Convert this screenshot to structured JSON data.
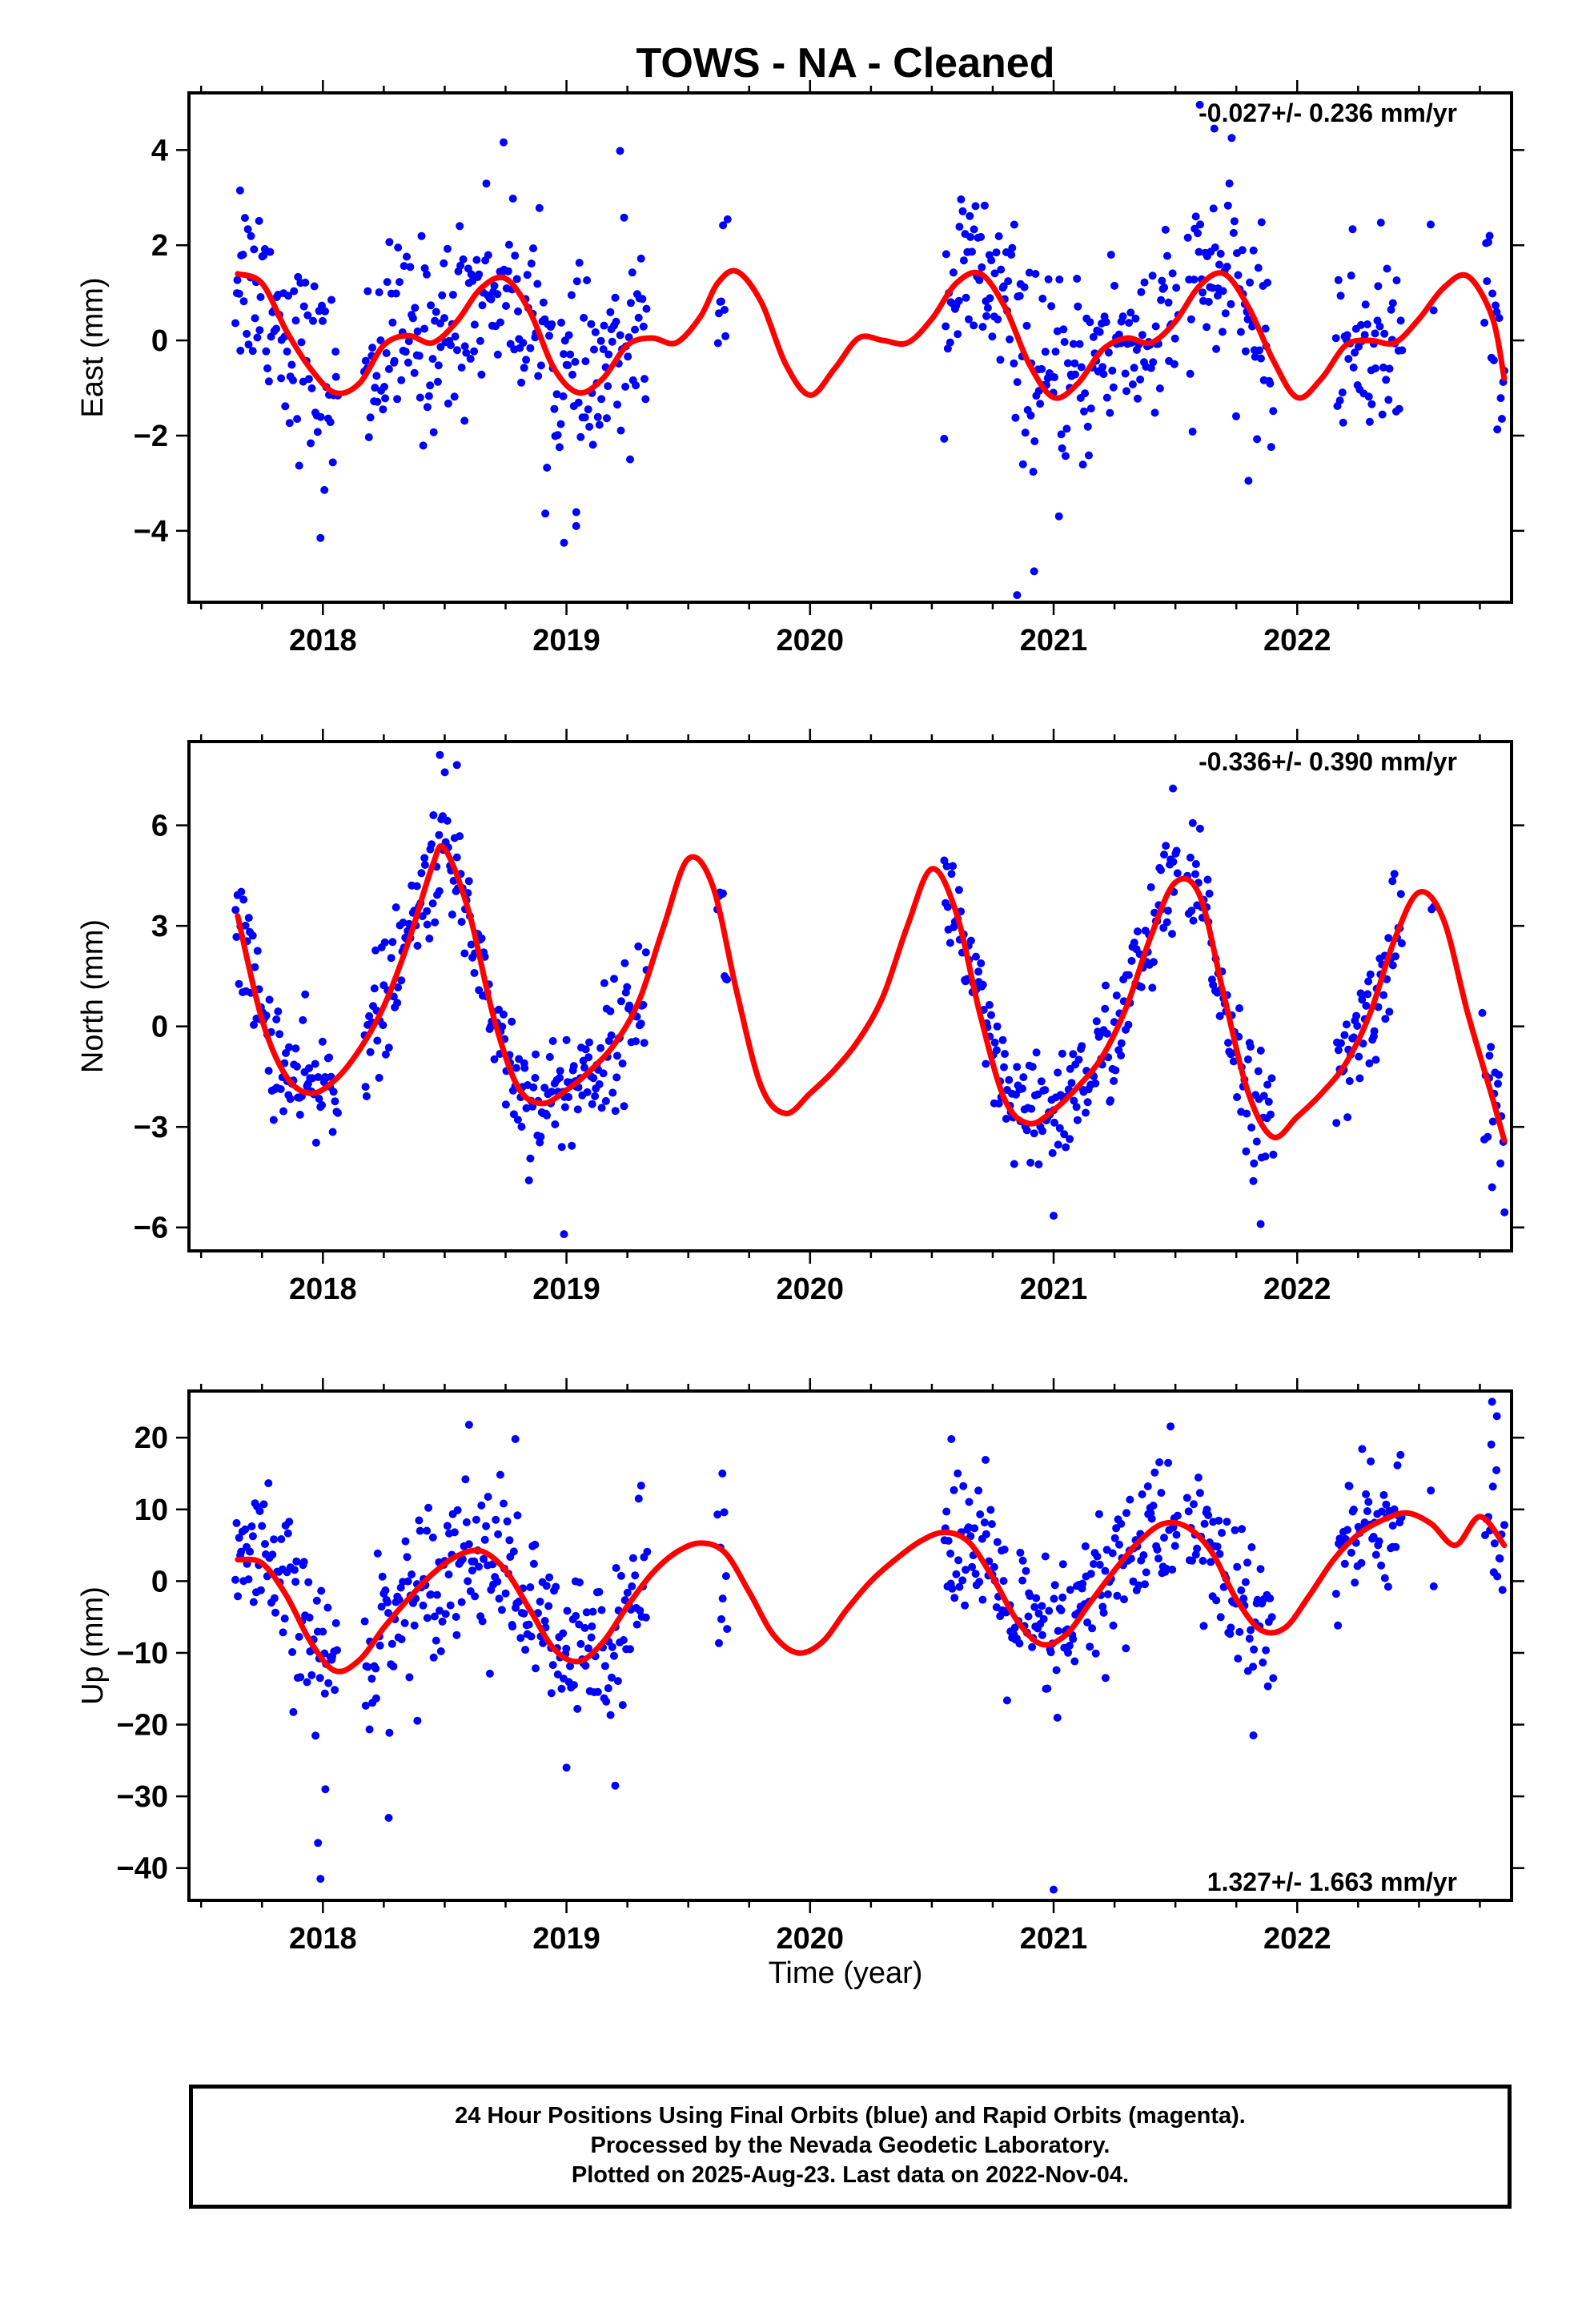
{
  "title": "TOWS  - NA - Cleaned",
  "xlabel": "Time (year)",
  "footer": {
    "line1": "24 Hour Positions Using Final Orbits (blue) and Rapid Orbits (magenta).",
    "line2": "Processed by the Nevada Geodetic Laboratory.",
    "line3": "Plotted on 2025-Aug-23. Last data on 2022-Nov-04."
  },
  "colors": {
    "points": "#0000ff",
    "fit": "#ff0000",
    "frame": "#000000"
  },
  "chart_data": [
    {
      "type": "scatter",
      "ylabel": "East (mm)",
      "rate_label": "-0.027+/- 0.236 mm/yr",
      "rate_position": "top-right",
      "xlim": [
        2017.45,
        2022.88
      ],
      "ylim": [
        -5.5,
        5.2
      ],
      "xticks": [
        2018,
        2019,
        2020,
        2021,
        2022
      ],
      "yticks": [
        -4,
        -2,
        0,
        2,
        4
      ],
      "ytick_labels": [
        "−4",
        "−2",
        "0",
        "2",
        "4"
      ],
      "data_segments": [
        [
          2017.64,
          2018.06
        ],
        [
          2018.17,
          2019.33
        ],
        [
          2019.62,
          2019.66
        ],
        [
          2020.55,
          2021.51
        ],
        [
          2021.55,
          2021.9
        ],
        [
          2022.16,
          2022.43
        ],
        [
          2022.55,
          2022.56
        ],
        [
          2022.77,
          2022.85
        ]
      ],
      "scatter_params": {
        "sd": 1.0,
        "annual": [
          0.25,
          0.2
        ],
        "semi": [
          -0.7,
          0.3
        ]
      },
      "outliers": [
        [
          2017.66,
          3.15
        ],
        [
          2017.99,
          -4.15
        ],
        [
          2018.99,
          -4.25
        ],
        [
          2019.04,
          -3.9
        ],
        [
          2019.22,
          3.98
        ],
        [
          2020.85,
          -5.35
        ],
        [
          2020.92,
          -4.85
        ],
        [
          2021.6,
          4.95
        ],
        [
          2021.66,
          4.45
        ],
        [
          2021.8,
          -2.95
        ]
      ],
      "fit": {
        "x": [
          2017.65,
          2017.75,
          2017.85,
          2017.95,
          2018.05,
          2018.15,
          2018.25,
          2018.35,
          2018.45,
          2018.55,
          2018.65,
          2018.75,
          2018.85,
          2018.95,
          2019.05,
          2019.15,
          2019.25,
          2019.35,
          2019.45,
          2019.55,
          2019.62,
          2019.7,
          2019.8,
          2019.9,
          2020.0,
          2020.1,
          2020.2,
          2020.3,
          2020.4,
          2020.5,
          2020.6,
          2020.7,
          2020.8,
          2020.9,
          2021.0,
          2021.1,
          2021.2,
          2021.3,
          2021.4,
          2021.5,
          2021.6,
          2021.7,
          2021.8,
          2021.9,
          2022.0,
          2022.1,
          2022.2,
          2022.3,
          2022.4,
          2022.5,
          2022.6,
          2022.7,
          2022.8,
          2022.85
        ],
        "y": [
          1.4,
          1.2,
          0.2,
          -0.6,
          -1.1,
          -0.9,
          -0.1,
          0.1,
          -0.05,
          0.4,
          1.1,
          1.3,
          0.6,
          -0.6,
          -1.1,
          -0.8,
          -0.1,
          0.05,
          -0.05,
          0.5,
          1.2,
          1.45,
          0.8,
          -0.5,
          -1.15,
          -0.6,
          0.05,
          0.0,
          -0.05,
          0.45,
          1.2,
          1.4,
          0.7,
          -0.5,
          -1.2,
          -0.9,
          -0.2,
          0.05,
          -0.05,
          0.4,
          1.15,
          1.4,
          0.7,
          -0.4,
          -1.2,
          -0.8,
          -0.1,
          0.0,
          -0.05,
          0.45,
          1.1,
          1.35,
          0.5,
          -0.8
        ]
      }
    },
    {
      "type": "scatter",
      "ylabel": "North (mm)",
      "rate_label": "-0.336+/- 0.390 mm/yr",
      "rate_position": "top-right",
      "xlim": [
        2017.45,
        2022.88
      ],
      "ylim": [
        -6.7,
        8.5
      ],
      "xticks": [
        2018,
        2019,
        2020,
        2021,
        2022
      ],
      "yticks": [
        -6,
        -3,
        0,
        3,
        6
      ],
      "ytick_labels": [
        "−6",
        "−3",
        "0",
        "3",
        "6"
      ],
      "data_segments": [
        [
          2017.64,
          2018.06
        ],
        [
          2018.17,
          2019.33
        ],
        [
          2019.62,
          2019.66
        ],
        [
          2020.55,
          2021.51
        ],
        [
          2021.55,
          2021.9
        ],
        [
          2022.16,
          2022.43
        ],
        [
          2022.55,
          2022.56
        ],
        [
          2022.77,
          2022.85
        ]
      ],
      "scatter_params": {
        "sd": 0.9,
        "annual": [
          0.15,
          0.1
        ],
        "semi": [
          -0.2,
          0.2
        ]
      },
      "outliers": [
        [
          2018.48,
          8.1
        ],
        [
          2018.55,
          7.8
        ],
        [
          2018.99,
          -6.2
        ],
        [
          2021.0,
          -5.65
        ],
        [
          2021.49,
          7.1
        ],
        [
          2021.85,
          -5.9
        ],
        [
          2022.8,
          -4.8
        ],
        [
          2022.76,
          0.4
        ]
      ],
      "fit": {
        "x": [
          2017.65,
          2017.75,
          2017.85,
          2017.95,
          2018.05,
          2018.15,
          2018.25,
          2018.35,
          2018.45,
          2018.5,
          2018.6,
          2018.7,
          2018.8,
          2018.9,
          2019.0,
          2019.1,
          2019.2,
          2019.3,
          2019.4,
          2019.5,
          2019.6,
          2019.7,
          2019.8,
          2019.9,
          2020.0,
          2020.1,
          2020.2,
          2020.3,
          2020.4,
          2020.5,
          2020.6,
          2020.7,
          2020.8,
          2020.9,
          2021.0,
          2021.1,
          2021.2,
          2021.3,
          2021.4,
          2021.5,
          2021.6,
          2021.7,
          2021.8,
          2021.9,
          2022.0,
          2022.1,
          2022.2,
          2022.3,
          2022.4,
          2022.5,
          2022.6,
          2022.7,
          2022.8,
          2022.85
        ],
        "y": [
          3.3,
          0.2,
          -1.5,
          -2.0,
          -1.6,
          -0.7,
          0.6,
          2.5,
          4.8,
          5.3,
          3.4,
          0.3,
          -1.8,
          -2.3,
          -1.9,
          -1.3,
          -0.5,
          0.8,
          3.0,
          5.0,
          4.2,
          1.0,
          -1.8,
          -2.6,
          -2.0,
          -1.3,
          -0.4,
          0.9,
          3.0,
          4.7,
          3.4,
          0.3,
          -2.2,
          -2.9,
          -2.5,
          -1.8,
          -0.9,
          0.6,
          2.7,
          4.3,
          3.9,
          0.9,
          -2.0,
          -3.3,
          -2.7,
          -2.0,
          -1.1,
          0.4,
          2.6,
          4.0,
          3.2,
          0.4,
          -2.1,
          -3.4
        ]
      }
    },
    {
      "type": "scatter",
      "ylabel": "Up (mm)",
      "rate_label": "1.327+/- 1.663 mm/yr",
      "rate_position": "bottom-right",
      "xlim": [
        2017.45,
        2022.88
      ],
      "ylim": [
        -44.5,
        26.5
      ],
      "xticks": [
        2018,
        2019,
        2020,
        2021,
        2022
      ],
      "yticks": [
        -40,
        -30,
        -20,
        -10,
        0,
        10,
        20
      ],
      "ytick_labels": [
        "−40",
        "−30",
        "−20",
        "−10",
        "0",
        "10",
        "20"
      ],
      "data_segments": [
        [
          2017.64,
          2018.06
        ],
        [
          2018.17,
          2019.33
        ],
        [
          2019.62,
          2019.66
        ],
        [
          2020.55,
          2021.51
        ],
        [
          2021.55,
          2021.9
        ],
        [
          2022.16,
          2022.43
        ],
        [
          2022.55,
          2022.56
        ],
        [
          2022.77,
          2022.85
        ]
      ],
      "scatter_params": {
        "sd": 5.5,
        "annual": [
          1.5,
          1.0
        ],
        "semi": [
          -1.0,
          1.0
        ]
      },
      "outliers": [
        [
          2017.99,
          -41.5
        ],
        [
          2017.98,
          -36.5
        ],
        [
          2018.01,
          -29.0
        ],
        [
          2018.27,
          -33.0
        ],
        [
          2018.6,
          21.8
        ],
        [
          2018.79,
          19.8
        ],
        [
          2019.0,
          -26.0
        ],
        [
          2019.2,
          -28.5
        ],
        [
          2019.64,
          15.0
        ],
        [
          2020.58,
          19.8
        ],
        [
          2021.0,
          -43.0
        ],
        [
          2021.82,
          -21.5
        ],
        [
          2022.8,
          25.0
        ],
        [
          2022.82,
          23.0
        ]
      ],
      "fit": {
        "x": [
          2017.65,
          2017.75,
          2017.85,
          2017.95,
          2018.05,
          2018.15,
          2018.25,
          2018.35,
          2018.45,
          2018.55,
          2018.65,
          2018.75,
          2018.85,
          2018.95,
          2019.05,
          2019.15,
          2019.25,
          2019.35,
          2019.45,
          2019.55,
          2019.65,
          2019.75,
          2019.85,
          2019.95,
          2020.05,
          2020.15,
          2020.25,
          2020.35,
          2020.45,
          2020.55,
          2020.65,
          2020.75,
          2020.85,
          2020.95,
          2021.05,
          2021.15,
          2021.25,
          2021.35,
          2021.45,
          2021.55,
          2021.65,
          2021.75,
          2021.85,
          2021.95,
          2022.05,
          2022.15,
          2022.25,
          2022.35,
          2022.45,
          2022.55,
          2022.65,
          2022.75,
          2022.85
        ],
        "y": [
          3.0,
          2.5,
          -2.0,
          -8.5,
          -12.5,
          -11.0,
          -6.5,
          -2.5,
          1.0,
          3.5,
          4.2,
          1.5,
          -4.0,
          -9.5,
          -11.2,
          -8.5,
          -3.5,
          1.0,
          4.0,
          5.3,
          4.0,
          -1.5,
          -7.5,
          -10.0,
          -8.5,
          -4.0,
          0.0,
          3.0,
          5.5,
          6.8,
          5.5,
          0.5,
          -5.5,
          -8.8,
          -7.5,
          -3.0,
          1.5,
          5.5,
          8.0,
          7.5,
          4.0,
          -2.5,
          -6.8,
          -6.5,
          -2.0,
          3.0,
          6.5,
          8.5,
          9.5,
          8.0,
          5.0,
          9.0,
          5.0
        ]
      }
    }
  ]
}
